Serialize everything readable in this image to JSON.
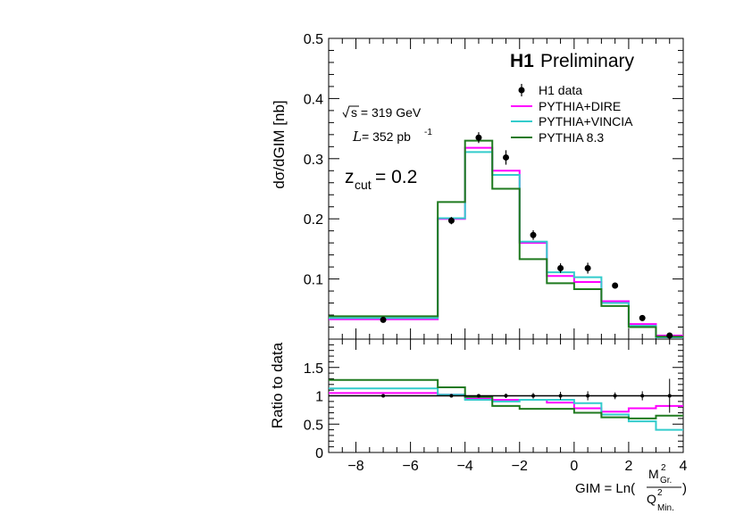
{
  "chart_data": [
    {
      "type": "step-histogram",
      "panel": "main",
      "ylabel": "dσ/dGIM [nb]",
      "xlim": [
        -9,
        4
      ],
      "ylim": [
        0,
        0.5
      ],
      "yticks": [
        "0.1",
        "0.2",
        "0.3",
        "0.4",
        "0.5"
      ],
      "bin_edges": [
        -9,
        -5,
        -4,
        -3,
        -2,
        -1,
        0,
        1,
        2,
        3,
        4
      ],
      "logo": {
        "bold": "H1",
        "rest": "Preliminary"
      },
      "annotations": {
        "sqrt_s": "s = 319 GeV",
        "lumi_L": "L",
        "lumi_value": " = 352 pb",
        "lumi_exp": "-1",
        "zcut_base": "z",
        "zcut_sub": "cut",
        "zcut_value": " = 0.2"
      },
      "legend_position": "top-right",
      "data_points": {
        "name": "H1 data",
        "color": "#000000",
        "x": [
          -7,
          -4.5,
          -3.5,
          -2.5,
          -1.5,
          -0.5,
          0.5,
          1.5,
          2.5,
          3.5
        ],
        "y": [
          0.032,
          0.197,
          0.335,
          0.302,
          0.173,
          0.118,
          0.118,
          0.089,
          0.035,
          0.006
        ],
        "err": [
          0.002,
          0.006,
          0.009,
          0.012,
          0.008,
          0.008,
          0.009,
          0.005,
          0.003,
          0.002
        ]
      },
      "series": [
        {
          "name": "PYTHIA+DIRE",
          "color": "#ff00ff",
          "values": [
            0.033,
            0.2,
            0.318,
            0.28,
            0.16,
            0.105,
            0.095,
            0.063,
            0.025,
            0.006
          ]
        },
        {
          "name": "PYTHIA+VINCIA",
          "color": "#33cccc",
          "values": [
            0.035,
            0.201,
            0.311,
            0.273,
            0.162,
            0.111,
            0.103,
            0.06,
            0.022,
            0.003
          ]
        },
        {
          "name": "PYTHIA 8.3",
          "color": "#1f7a1f",
          "values": [
            0.038,
            0.228,
            0.33,
            0.25,
            0.133,
            0.093,
            0.083,
            0.055,
            0.02,
            0.004
          ]
        }
      ]
    },
    {
      "type": "step-histogram",
      "panel": "ratio",
      "ylabel": "Ratio to data",
      "xlabel_base": "GIM = Ln(",
      "xlabel_num": "M",
      "xlabel_num_sup": "2",
      "xlabel_num_sub": "Gr.",
      "xlabel_den": "Q",
      "xlabel_den_sup": "2",
      "xlabel_den_sub": "Min.",
      "xlabel_close": ")",
      "xlim": [
        -9,
        4
      ],
      "ylim": [
        0,
        2.0
      ],
      "yticks": [
        "0",
        "0.5",
        "1",
        "1.5"
      ],
      "xticks": [
        "−8",
        "−6",
        "−4",
        "−2",
        "0",
        "2",
        "4"
      ],
      "bin_edges": [
        -9,
        -5,
        -4,
        -3,
        -2,
        -1,
        0,
        1,
        2,
        3,
        4
      ],
      "reference_line": 1,
      "data_points": {
        "x": [
          -7,
          -4.5,
          -3.5,
          -2.5,
          -1.5,
          -0.5,
          0.5,
          1.5,
          2.5,
          3.5
        ],
        "y": [
          1,
          1,
          1,
          1,
          1,
          1,
          1,
          1,
          1,
          1
        ],
        "err": [
          0.03,
          0.03,
          0.03,
          0.04,
          0.05,
          0.07,
          0.08,
          0.06,
          0.08,
          0.3
        ]
      },
      "series": [
        {
          "name": "PYTHIA+DIRE",
          "color": "#ff00ff",
          "values": [
            1.05,
            1.02,
            0.95,
            0.93,
            0.93,
            0.88,
            0.78,
            0.72,
            0.78,
            0.82
          ]
        },
        {
          "name": "PYTHIA+VINCIA",
          "color": "#33cccc",
          "values": [
            1.13,
            1.02,
            0.93,
            0.9,
            0.93,
            0.93,
            0.87,
            0.67,
            0.55,
            0.4
          ]
        },
        {
          "name": "PYTHIA 8.3",
          "color": "#1f7a1f",
          "values": [
            1.28,
            1.15,
            0.98,
            0.82,
            0.77,
            0.77,
            0.7,
            0.62,
            0.6,
            0.65
          ]
        }
      ]
    }
  ]
}
